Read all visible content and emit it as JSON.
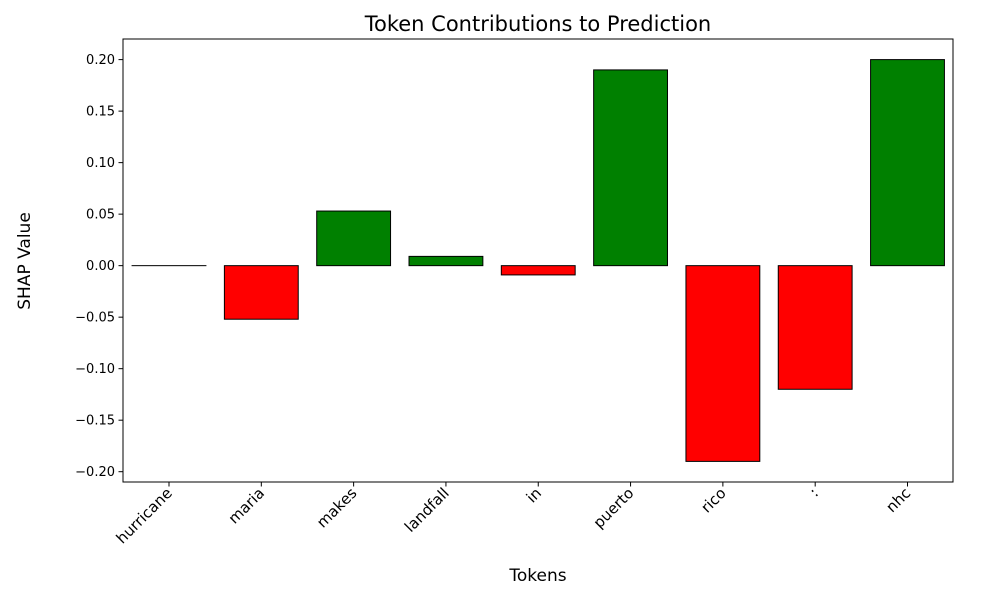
{
  "chart_data": {
    "type": "bar",
    "title": "Token Contributions to Prediction",
    "xlabel": "Tokens",
    "ylabel": "SHAP Value",
    "categories": [
      "hurricane",
      "maria",
      "makes",
      "landfall",
      "in",
      "puerto",
      "rico",
      ":",
      "nhc"
    ],
    "values": [
      0.0,
      -0.052,
      0.053,
      0.009,
      -0.009,
      0.19,
      -0.19,
      -0.12,
      0.2
    ],
    "ylim": [
      -0.21,
      0.22
    ],
    "yticks": [
      -0.2,
      -0.15,
      -0.1,
      -0.05,
      0.0,
      0.05,
      0.1,
      0.15,
      0.2
    ],
    "ytick_labels": [
      "−0.20",
      "−0.15",
      "−0.10",
      "−0.05",
      "0.00",
      "0.05",
      "0.10",
      "0.15",
      "0.20"
    ],
    "positive_color": "#008000",
    "negative_color": "#ff0000",
    "edge_color": "#000000",
    "grid": false,
    "legend": "none"
  }
}
